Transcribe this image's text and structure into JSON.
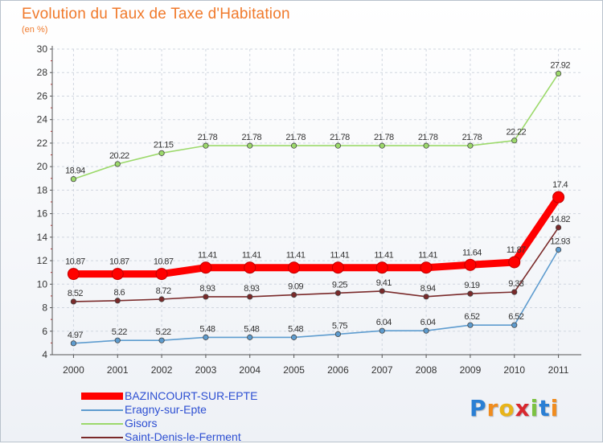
{
  "chart_data": {
    "type": "line",
    "title": "Evolution du Taux de Taxe d'Habitation",
    "subtitle": "(en %)",
    "xlabel": "",
    "ylabel": "",
    "ylim": [
      4,
      30
    ],
    "yticks": [
      4,
      6,
      8,
      10,
      12,
      14,
      16,
      18,
      20,
      22,
      24,
      26,
      28,
      30
    ],
    "x": [
      "2000",
      "2001",
      "2002",
      "2003",
      "2004",
      "2005",
      "2006",
      "2007",
      "2008",
      "2009",
      "2010",
      "2011"
    ],
    "grid": true,
    "legend_position": "bottom-left",
    "series": [
      {
        "name": "BAZINCOURT-SUR-EPTE",
        "color": "#ff0000",
        "emphasis": true,
        "values": [
          10.87,
          10.87,
          10.87,
          11.41,
          11.41,
          11.41,
          11.41,
          11.41,
          11.41,
          11.64,
          11.87,
          17.4
        ],
        "labels": [
          "10.87",
          "10.87",
          "10.87",
          "11.41",
          "11.41",
          "11.41",
          "11.41",
          "11.41",
          "11.41",
          "11.64",
          "11.87",
          "17.4"
        ]
      },
      {
        "name": "Eragny-sur-Epte",
        "color": "#5e9ccf",
        "values": [
          4.97,
          5.22,
          5.22,
          5.48,
          5.48,
          5.48,
          5.75,
          6.04,
          6.04,
          6.52,
          6.52,
          12.93
        ],
        "labels": [
          "4.97",
          "5.22",
          "5.22",
          "5.48",
          "5.48",
          "5.48",
          "5.75",
          "6.04",
          "6.04",
          "6.52",
          "6.52",
          "12.93"
        ]
      },
      {
        "name": "Gisors",
        "color": "#9cd96b",
        "values": [
          18.94,
          20.22,
          21.15,
          21.78,
          21.78,
          21.78,
          21.78,
          21.78,
          21.78,
          21.78,
          22.22,
          27.92
        ],
        "labels": [
          "18.94",
          "20.22",
          "21.15",
          "21.78",
          "21.78",
          "21.78",
          "21.78",
          "21.78",
          "21.78",
          "21.78",
          "22.22",
          "27.92"
        ]
      },
      {
        "name": "Saint-Denis-le-Ferment",
        "color": "#7a2a2a",
        "values": [
          8.52,
          8.6,
          8.72,
          8.93,
          8.93,
          9.09,
          9.25,
          9.41,
          8.94,
          9.19,
          9.33,
          14.82
        ],
        "labels": [
          "8.52",
          "8.6",
          "8.72",
          "8.93",
          "8.93",
          "9.09",
          "9.25",
          "9.41",
          "8.94",
          "9.19",
          "9.33",
          "14.82"
        ]
      }
    ]
  },
  "logo": {
    "letters": [
      "P",
      "r",
      "o",
      "x",
      "i",
      "t",
      "i"
    ],
    "colors": [
      "#2a7fd4",
      "#f08c1e",
      "#e8b41a",
      "#d8272e",
      "#7cc242",
      "#2a7fd4",
      "#f08c1e"
    ]
  }
}
